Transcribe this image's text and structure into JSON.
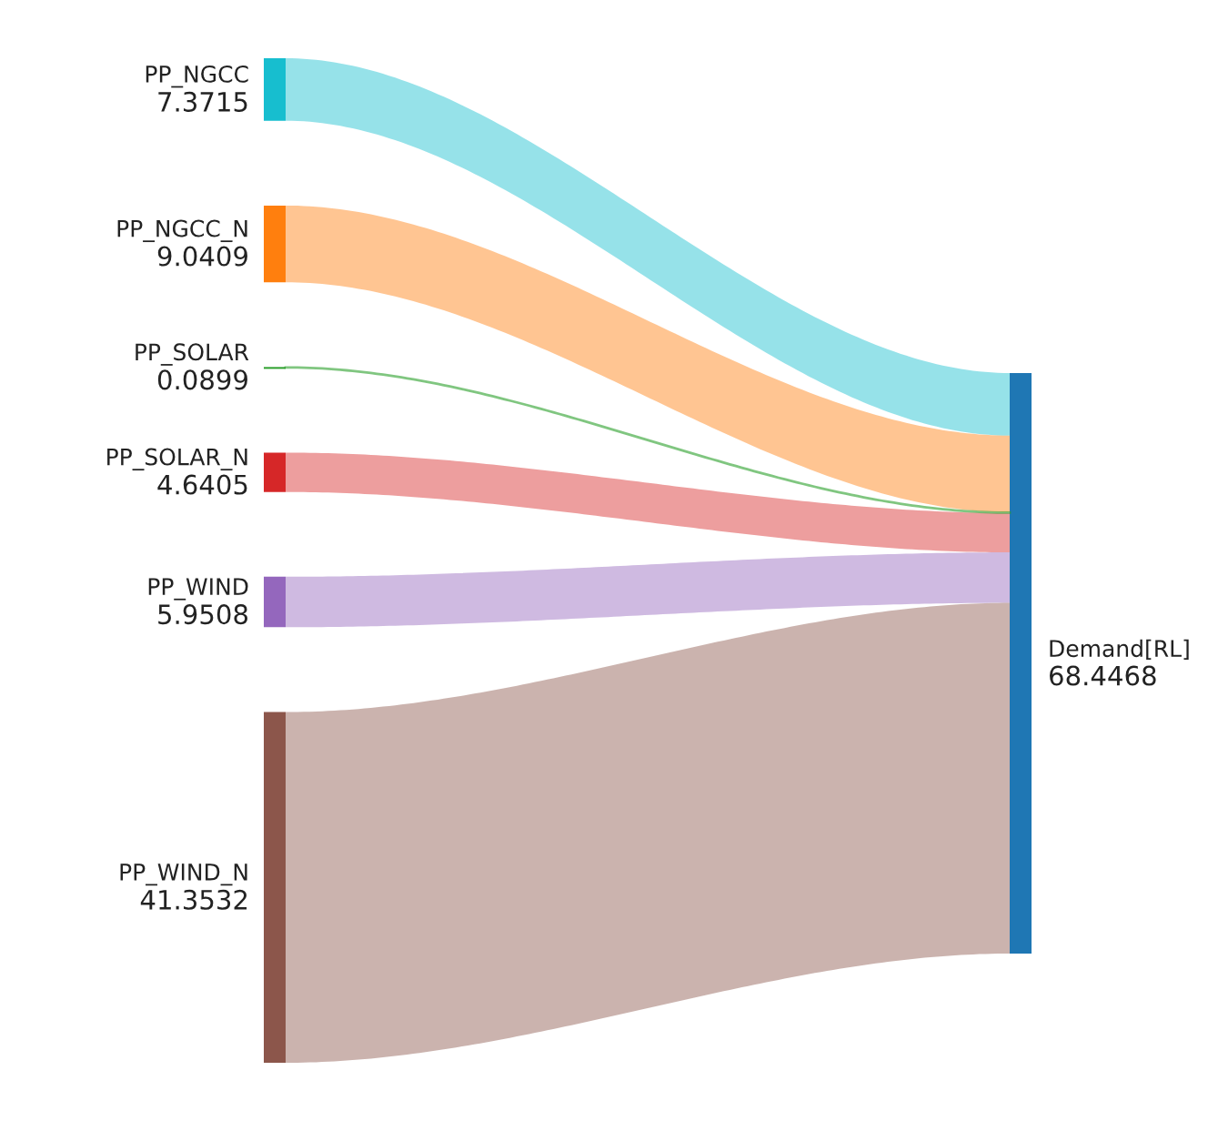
{
  "chart_data": {
    "type": "other",
    "categories": [
      "PP_NGCC",
      "PP_NGCC_N",
      "PP_SOLAR",
      "PP_SOLAR_N",
      "PP_WIND",
      "PP_WIND_N",
      "Demand[RL]"
    ],
    "values": [
      7.3715,
      9.0409,
      0.0899,
      4.6405,
      5.9508,
      41.3532,
      68.4468
    ],
    "data_labels": true,
    "colors": [
      "#17becf",
      "#ff7f0e",
      "#2ca02c",
      "#d62728",
      "#9467bd",
      "#8c564b",
      "#1f77b4"
    ]
  }
}
